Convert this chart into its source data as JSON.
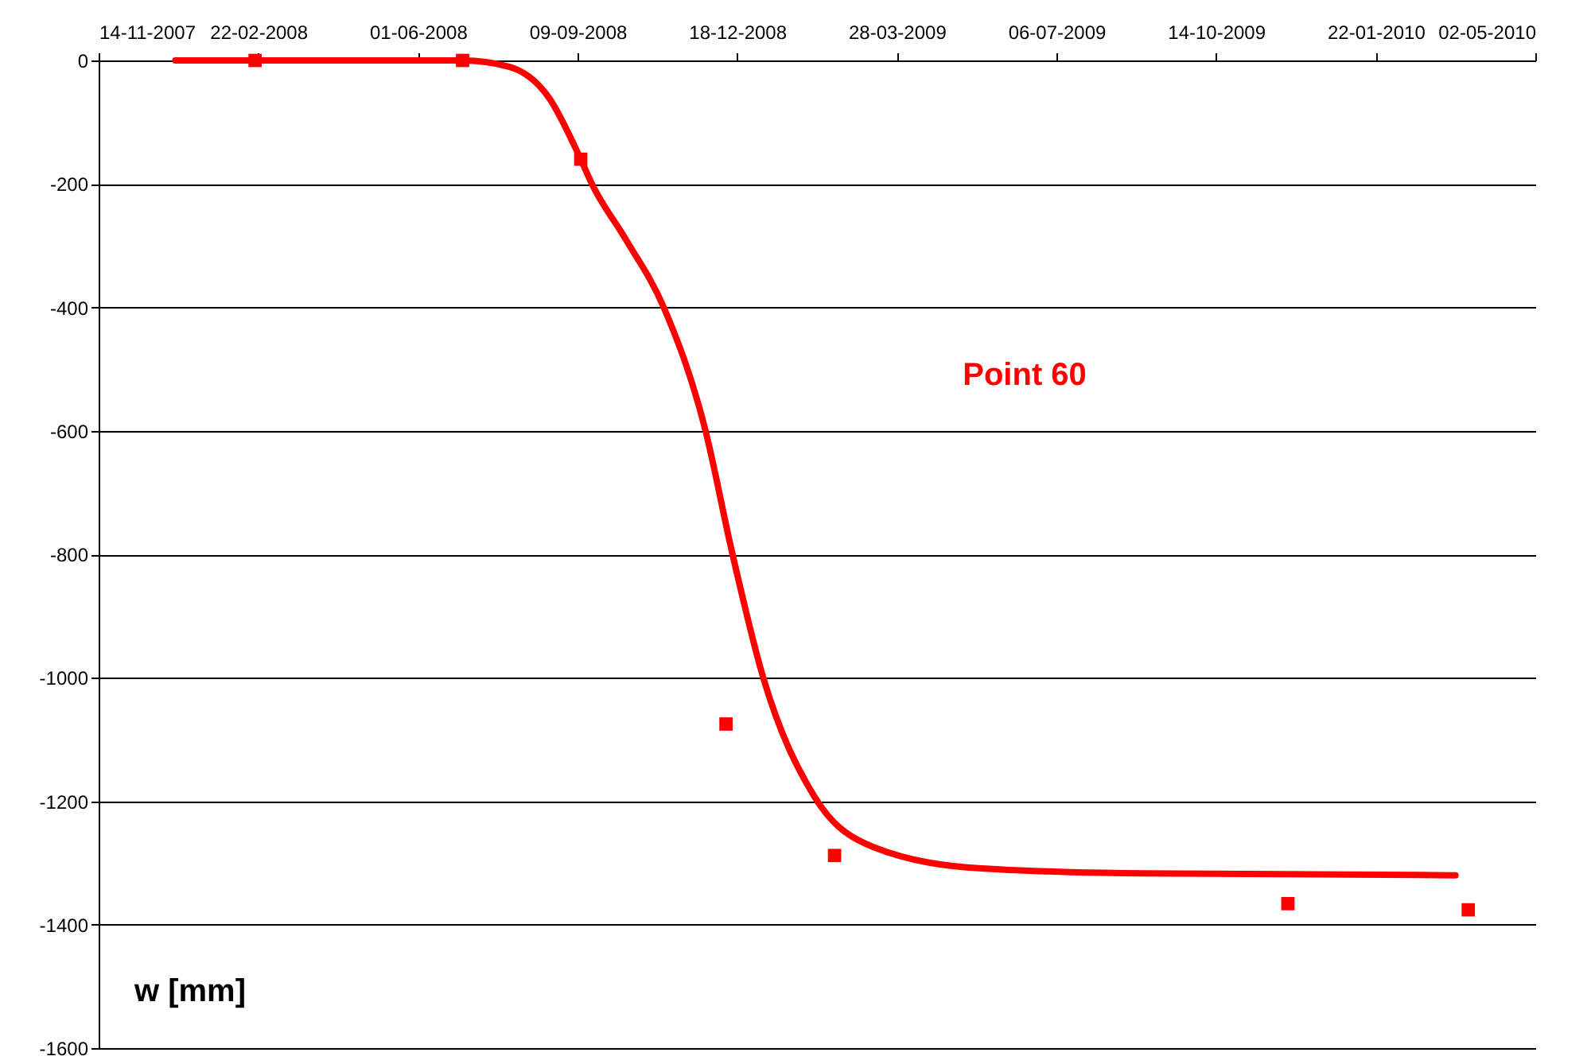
{
  "chart_data": {
    "type": "scatter",
    "ylabel": "w [mm]",
    "annotations": [
      "Point 60"
    ],
    "x": [
      "2008-02-20",
      "2008-06-29",
      "2008-09-11",
      "2008-12-11",
      "2009-02-17",
      "2009-11-28",
      "2010-03-21"
    ],
    "series": [
      {
        "color": "#ff0000",
        "marker": "square",
        "values": [
          0,
          0,
          -160,
          -1075,
          -1288,
          -1366,
          -1376
        ]
      },
      {
        "type": "line",
        "color": "#ff0000",
        "line_style": "solid",
        "x": [
          "2008-01-01",
          "2008-06-29",
          "2008-07-28",
          "2008-08-22",
          "2008-09-11",
          "2008-09-18",
          "2008-10-09",
          "2008-11-02",
          "2008-11-28",
          "2008-12-15",
          "2009-01-03",
          "2009-02-05",
          "2009-03-14",
          "2009-05-20",
          "2009-08-28",
          "2010-03-13"
        ],
        "values": [
          0,
          0,
          -10,
          -60,
          -160,
          -200,
          -289,
          -400,
          -598,
          -799,
          -997,
          -1195,
          -1275,
          -1309,
          -1317,
          -1320
        ]
      }
    ],
    "xlim": [
      "2007-11-14",
      "2010-05-02"
    ],
    "xticks": [
      {
        "value": "2007-11-14",
        "label": "14-11-2007"
      },
      {
        "value": "2008-02-22",
        "label": "22-02-2008"
      },
      {
        "value": "2008-06-01",
        "label": "01-06-2008"
      },
      {
        "value": "2008-09-09",
        "label": "09-09-2008"
      },
      {
        "value": "2008-12-18",
        "label": "18-12-2008"
      },
      {
        "value": "2009-03-28",
        "label": "28-03-2009"
      },
      {
        "value": "2009-07-06",
        "label": "06-07-2009"
      },
      {
        "value": "2009-10-14",
        "label": "14-10-2009"
      },
      {
        "value": "2010-01-22",
        "label": "22-01-2010"
      },
      {
        "value": "2010-05-02",
        "label": "02-05-2010"
      }
    ],
    "ylim": [
      -1600,
      0
    ],
    "yticks": [
      -1600,
      -1400,
      -1200,
      -1000,
      -800,
      -600,
      -400,
      -200,
      0
    ],
    "grid": "y"
  }
}
